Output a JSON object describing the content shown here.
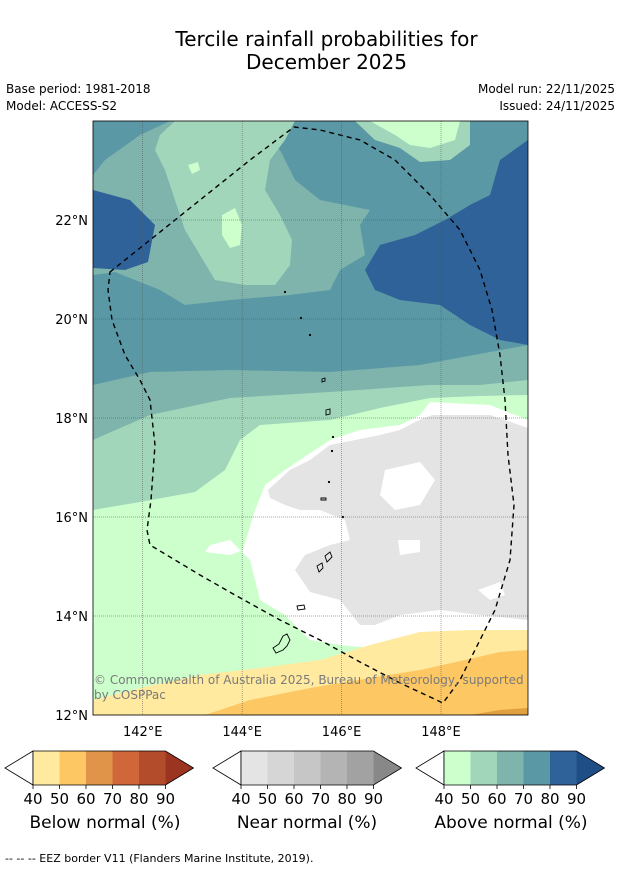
{
  "title_line1": "Tercile rainfall probabilities for",
  "title_line2": "December 2025",
  "meta_left": {
    "base_period": "Base period: 1981-2018",
    "model": "Model: ACCESS-S2"
  },
  "meta_right": {
    "model_run": "Model run: 22/11/2025",
    "issued": "Issued: 24/11/2025"
  },
  "map": {
    "lat_labels": [
      "22°N",
      "20°N",
      "18°N",
      "16°N",
      "14°N",
      "12°N"
    ],
    "lat_values": [
      22,
      20,
      18,
      16,
      14,
      12
    ],
    "lon_labels": [
      "142°E",
      "144°E",
      "146°E",
      "148°E"
    ],
    "lon_values": [
      142,
      144,
      146,
      148
    ],
    "lon_range": [
      141,
      149.75
    ],
    "lat_range": [
      12,
      24
    ],
    "copyright_line1": "© Commonwealth of Australia 2025, Bureau of Meteorology, supported",
    "copyright_line2": "by COSPPac",
    "boundary_name": "EEZ border",
    "colors": {
      "above_40": "#ccffcc",
      "above_50": "#a2d6bb",
      "above_60": "#7fb4ad",
      "above_70": "#5a98a5",
      "above_80": "#2f6298",
      "near_40": "#e4e4e4",
      "below_40": "#ffeaa0",
      "below_50": "#fdc763",
      "below_60": "#e0a040",
      "white": "#ffffff"
    }
  },
  "colorbars": {
    "tick_labels": [
      "40",
      "50",
      "60",
      "70",
      "80",
      "90"
    ],
    "below": {
      "title": "Below normal (%)",
      "colors": [
        "#ffeaa0",
        "#fdc763",
        "#e0944a",
        "#d0673a",
        "#b24c2b",
        "#9b3421"
      ]
    },
    "near": {
      "title": "Near normal (%)",
      "colors": [
        "#e4e4e4",
        "#d6d6d6",
        "#c6c6c6",
        "#b4b4b4",
        "#a2a2a2",
        "#888888"
      ]
    },
    "above": {
      "title": "Above normal (%)",
      "colors": [
        "#ccffcc",
        "#a2d6bb",
        "#7fb4ad",
        "#5a98a5",
        "#2f6298",
        "#1f4e87"
      ]
    }
  },
  "footnote": "--  --  -- EEZ border V11 (Flanders Marine Institute, 2019)."
}
